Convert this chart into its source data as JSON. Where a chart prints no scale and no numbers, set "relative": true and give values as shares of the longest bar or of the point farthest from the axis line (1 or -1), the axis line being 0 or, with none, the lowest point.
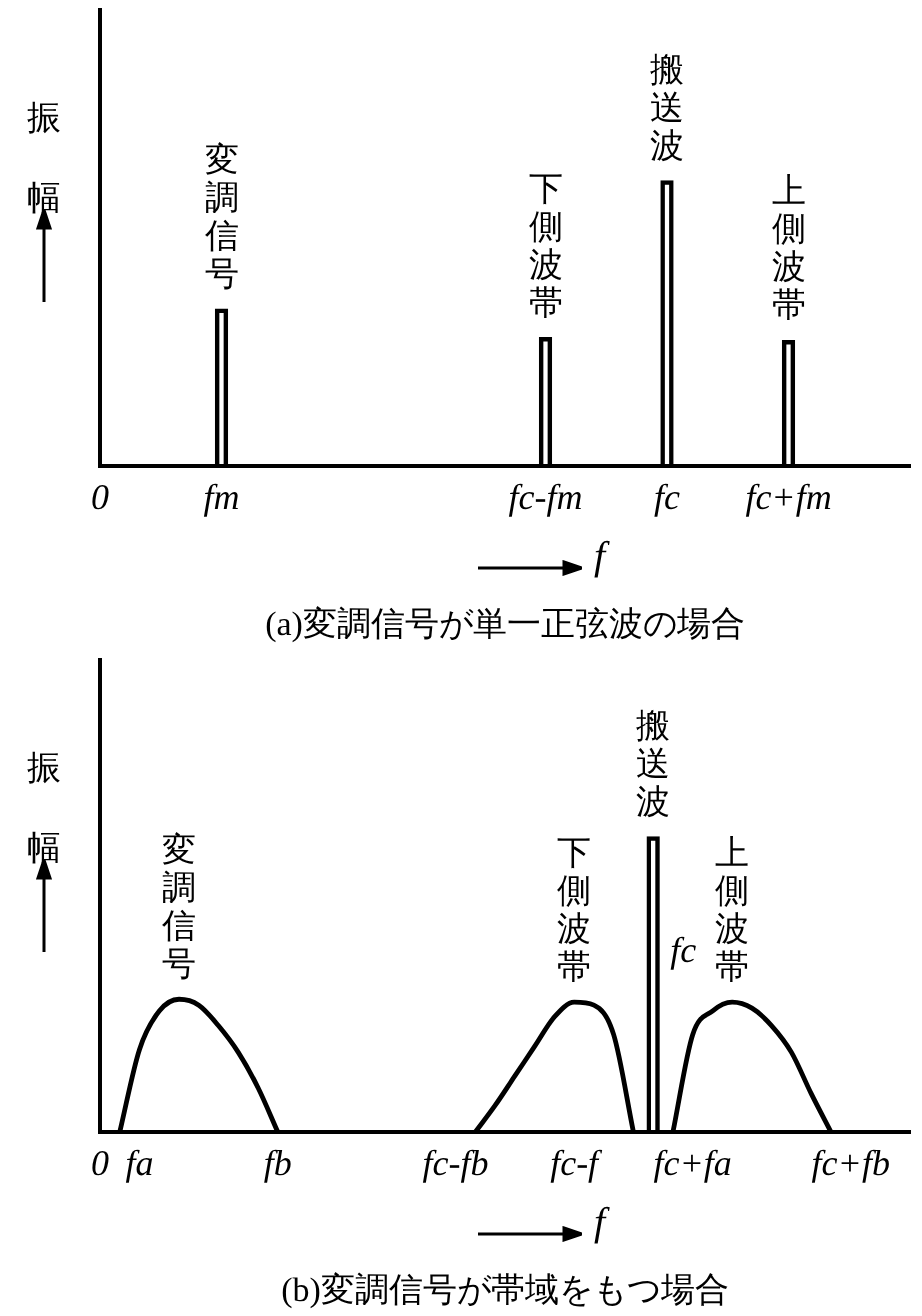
{
  "chart_data": [
    {
      "type": "bar",
      "title": "(a)変調信号が単一正弦波の場合",
      "ylabel": "振幅",
      "xlabel": "f",
      "relative": true,
      "grid": false,
      "legend": false,
      "categories": [
        "0",
        null,
        null,
        null,
        null,
        null,
        "fm",
        null,
        null,
        null,
        null,
        null,
        null,
        null,
        null,
        null,
        null,
        null,
        null,
        null,
        null,
        null,
        "fc-fm",
        null,
        null,
        null,
        null,
        null,
        "fc",
        null,
        null,
        null,
        null,
        null,
        "fc+fm",
        null,
        null,
        null,
        null,
        null,
        null
      ],
      "series": [
        {
          "name": "変調信号",
          "color": "#000000",
          "values": [
            null,
            null,
            null,
            null,
            null,
            null,
            0.55,
            null,
            null,
            null,
            null,
            null,
            null,
            null,
            null,
            null,
            null,
            null,
            null,
            null,
            null,
            null,
            null,
            null,
            null,
            null,
            null,
            null,
            null,
            null,
            null,
            null,
            null,
            null,
            null,
            null,
            null,
            null,
            null,
            null,
            null
          ]
        },
        {
          "name": "下側波帯",
          "color": "#000000",
          "values": [
            null,
            null,
            null,
            null,
            null,
            null,
            null,
            null,
            null,
            null,
            null,
            null,
            null,
            null,
            null,
            null,
            null,
            null,
            null,
            null,
            null,
            null,
            0.45,
            null,
            null,
            null,
            null,
            null,
            null,
            null,
            null,
            null,
            null,
            null,
            null,
            null,
            null,
            null,
            null,
            null,
            null
          ]
        },
        {
          "name": "搬送波",
          "color": "#000000",
          "values": [
            null,
            null,
            null,
            null,
            null,
            null,
            null,
            null,
            null,
            null,
            null,
            null,
            null,
            null,
            null,
            null,
            null,
            null,
            null,
            null,
            null,
            null,
            null,
            null,
            null,
            null,
            null,
            null,
            1,
            null,
            null,
            null,
            null,
            null,
            null,
            null,
            null,
            null,
            null,
            null,
            null
          ]
        },
        {
          "name": "上側波帯",
          "color": "#000000",
          "values": [
            null,
            null,
            null,
            null,
            null,
            null,
            null,
            null,
            null,
            null,
            null,
            null,
            null,
            null,
            null,
            null,
            null,
            null,
            null,
            null,
            null,
            null,
            null,
            null,
            null,
            null,
            null,
            null,
            null,
            null,
            null,
            null,
            null,
            null,
            0.44,
            null,
            null,
            null,
            null,
            null,
            null
          ]
        }
      ]
    },
    {
      "type": "line",
      "title": "(b)変調信号が帯域をもつ場合",
      "ylabel": "振幅",
      "xlabel": "f",
      "relative": true,
      "grid": false,
      "legend": false,
      "marker": "none",
      "categories": [
        "0",
        null,
        "fa",
        null,
        null,
        null,
        null,
        null,
        null,
        "fb",
        null,
        null,
        null,
        null,
        null,
        null,
        null,
        null,
        "fc-fb",
        null,
        null,
        null,
        null,
        null,
        "fc-f",
        null,
        null,
        null,
        null,
        null,
        "fc+fa",
        null,
        null,
        null,
        null,
        null,
        null,
        null,
        "fc+fb",
        null,
        null,
        null
      ],
      "annotations": [
        "fc"
      ],
      "series": [
        {
          "name": "変調信号",
          "color": "#000000",
          "values": [
            null,
            0,
            0.28,
            0.41,
            0.45,
            0.43,
            0.36,
            0.27,
            0.15,
            0,
            null,
            null,
            null,
            null,
            null,
            null,
            null,
            null,
            null,
            null,
            null,
            null,
            null,
            null,
            null,
            null,
            null,
            null,
            null,
            null,
            null,
            null,
            null,
            null,
            null,
            null,
            null,
            null,
            null,
            null,
            null,
            null
          ]
        },
        {
          "name": "下側波帯",
          "color": "#000000",
          "values": [
            null,
            null,
            null,
            null,
            null,
            null,
            null,
            null,
            null,
            null,
            null,
            null,
            null,
            null,
            null,
            null,
            null,
            null,
            null,
            0,
            0.09,
            0.19,
            0.29,
            0.39,
            0.44,
            0.43,
            0.33,
            0,
            null,
            null,
            null,
            null,
            null,
            null,
            null,
            null,
            null,
            null,
            null,
            null,
            null,
            null
          ]
        },
        {
          "name": "搬送波",
          "type": "bar",
          "color": "#000000",
          "values": [
            null,
            null,
            null,
            null,
            null,
            null,
            null,
            null,
            null,
            null,
            null,
            null,
            null,
            null,
            null,
            null,
            null,
            null,
            null,
            null,
            null,
            null,
            null,
            null,
            null,
            null,
            null,
            null,
            1,
            null,
            null,
            null,
            null,
            null,
            null,
            null,
            null,
            null,
            null,
            null,
            null,
            null
          ]
        },
        {
          "name": "上側波帯",
          "color": "#000000",
          "values": [
            null,
            null,
            null,
            null,
            null,
            null,
            null,
            null,
            null,
            null,
            null,
            null,
            null,
            null,
            null,
            null,
            null,
            null,
            null,
            null,
            null,
            null,
            null,
            null,
            null,
            null,
            null,
            null,
            null,
            0,
            0.33,
            0.41,
            0.44,
            0.42,
            0.36,
            0.27,
            0.13,
            0,
            null,
            null,
            null,
            null
          ]
        }
      ]
    }
  ]
}
